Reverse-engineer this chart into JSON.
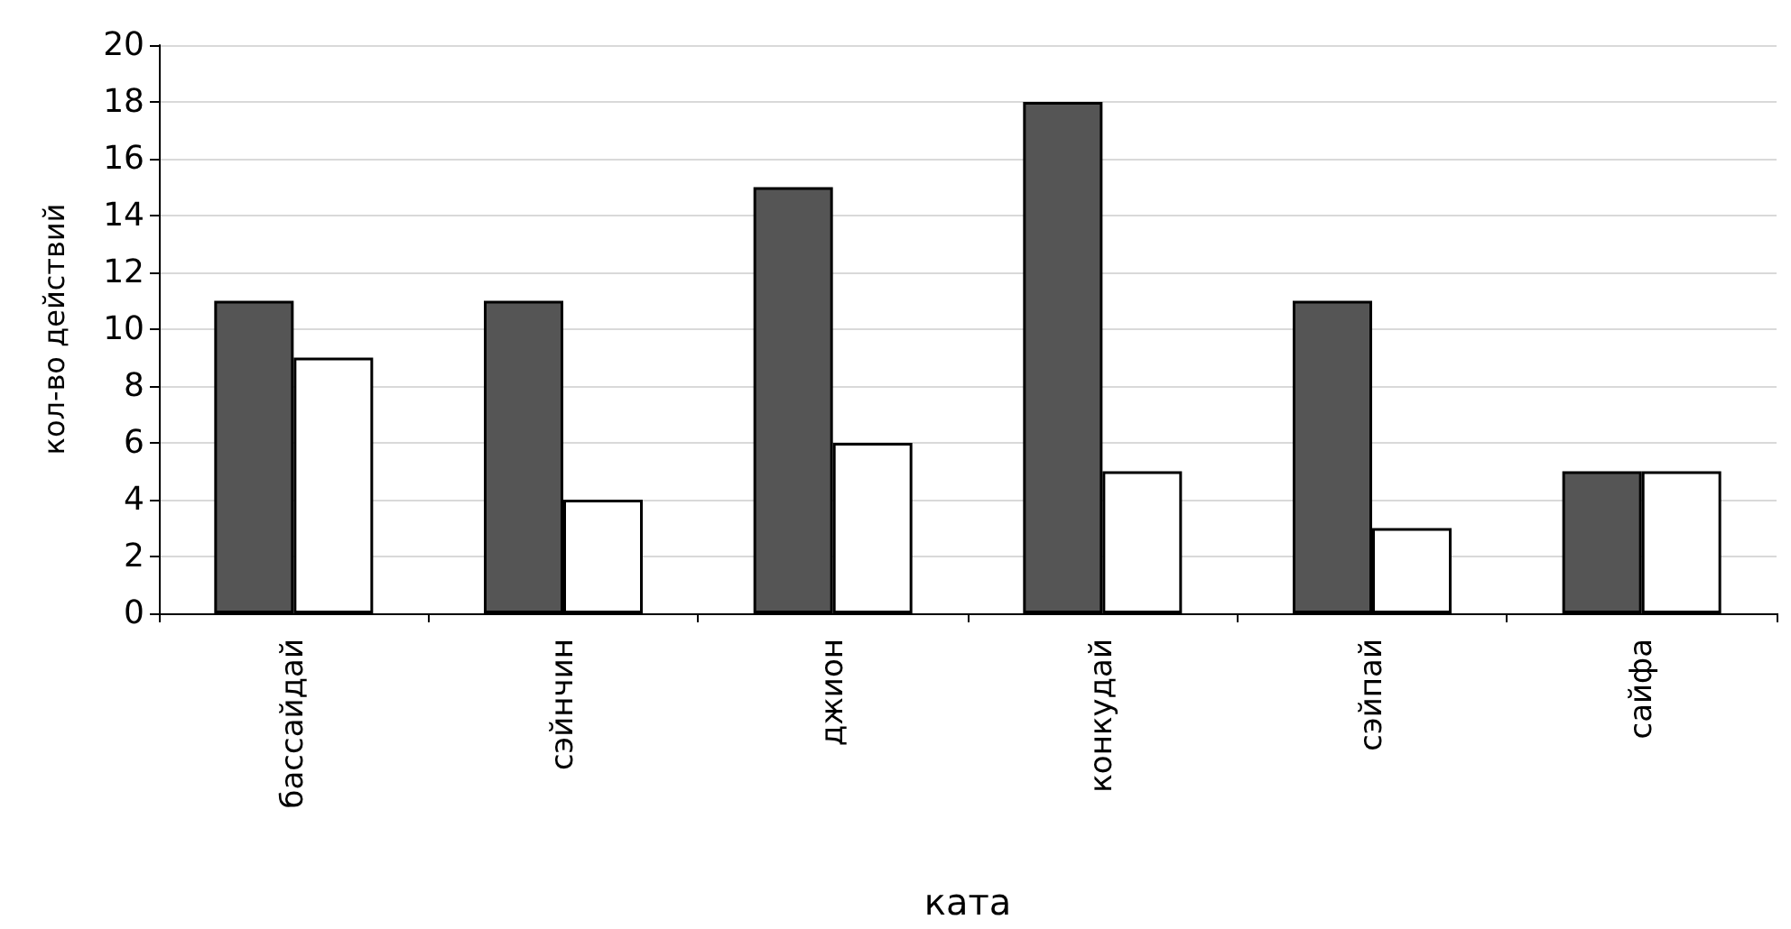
{
  "chart_data": {
    "type": "bar",
    "xlabel": "ката",
    "ylabel": "кол-во действий",
    "categories": [
      "бассайдай",
      "сэйнчин",
      "джион",
      "конкудай",
      "сэйпай",
      "сайфа"
    ],
    "series": [
      {
        "color": "#555555",
        "values": [
          11,
          11,
          15,
          18,
          11,
          5
        ]
      },
      {
        "color": "#ffffff",
        "values": [
          9,
          4,
          6,
          5,
          3,
          5
        ]
      }
    ],
    "ylim": [
      0,
      20
    ],
    "yticks": [
      0,
      2,
      4,
      6,
      8,
      10,
      12,
      14,
      16,
      18,
      20
    ],
    "grid": "y"
  }
}
